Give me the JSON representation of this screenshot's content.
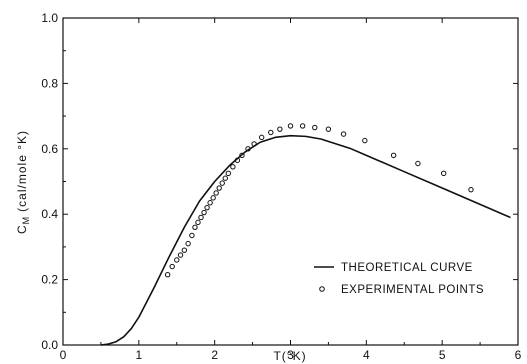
{
  "chart_data": {
    "type": "scatter",
    "title": "",
    "xlabel": "T(°K)",
    "ylabel": "C_M (cal/mole °K)",
    "ylabel_main": "C",
    "ylabel_sub": "M",
    "ylabel_rest": "(cal/mole °K)",
    "xlim": [
      0,
      6
    ],
    "ylim": [
      0,
      1.0
    ],
    "grid": false,
    "legend_position": "bottom-right",
    "x_ticks": [
      {
        "value": 0,
        "label": "0"
      },
      {
        "value": 1,
        "label": "1"
      },
      {
        "value": 2,
        "label": "2"
      },
      {
        "value": 3,
        "label": "3"
      },
      {
        "value": 4,
        "label": "4"
      },
      {
        "value": 5,
        "label": "5"
      },
      {
        "value": 6,
        "label": "6"
      }
    ],
    "y_ticks": [
      {
        "value": 0,
        "label": "0.0"
      },
      {
        "value": 0.2,
        "label": "0.2"
      },
      {
        "value": 0.4,
        "label": "0.4"
      },
      {
        "value": 0.6,
        "label": "0.6"
      },
      {
        "value": 0.8,
        "label": "0.8"
      },
      {
        "value": 1.0,
        "label": "1.0"
      }
    ],
    "series": [
      {
        "name": "THEORETICAL CURVE",
        "kind": "line",
        "x": [
          0.5,
          0.6,
          0.7,
          0.8,
          0.9,
          1.0,
          1.2,
          1.4,
          1.6,
          1.8,
          2.0,
          2.2,
          2.4,
          2.6,
          2.8,
          3.0,
          3.2,
          3.4,
          3.6,
          3.8,
          4.0,
          4.5,
          5.0,
          5.5,
          5.9
        ],
        "y": [
          0.0,
          0.003,
          0.01,
          0.025,
          0.05,
          0.085,
          0.175,
          0.27,
          0.36,
          0.44,
          0.5,
          0.55,
          0.59,
          0.62,
          0.635,
          0.64,
          0.638,
          0.63,
          0.615,
          0.6,
          0.58,
          0.53,
          0.48,
          0.43,
          0.39
        ]
      },
      {
        "name": "EXPERIMENTAL POINTS",
        "kind": "scatter",
        "x": [
          1.38,
          1.44,
          1.5,
          1.55,
          1.6,
          1.65,
          1.7,
          1.74,
          1.78,
          1.82,
          1.86,
          1.9,
          1.94,
          1.98,
          2.02,
          2.06,
          2.1,
          2.14,
          2.18,
          2.24,
          2.3,
          2.36,
          2.44,
          2.52,
          2.62,
          2.74,
          2.86,
          3.0,
          3.16,
          3.32,
          3.5,
          3.7,
          3.98,
          4.36,
          4.68,
          5.02,
          5.38
        ],
        "y": [
          0.215,
          0.24,
          0.26,
          0.275,
          0.29,
          0.31,
          0.335,
          0.36,
          0.375,
          0.39,
          0.405,
          0.42,
          0.435,
          0.45,
          0.465,
          0.48,
          0.495,
          0.51,
          0.525,
          0.545,
          0.565,
          0.58,
          0.6,
          0.615,
          0.635,
          0.65,
          0.66,
          0.67,
          0.67,
          0.665,
          0.66,
          0.645,
          0.625,
          0.58,
          0.555,
          0.525,
          0.475
        ]
      }
    ]
  }
}
